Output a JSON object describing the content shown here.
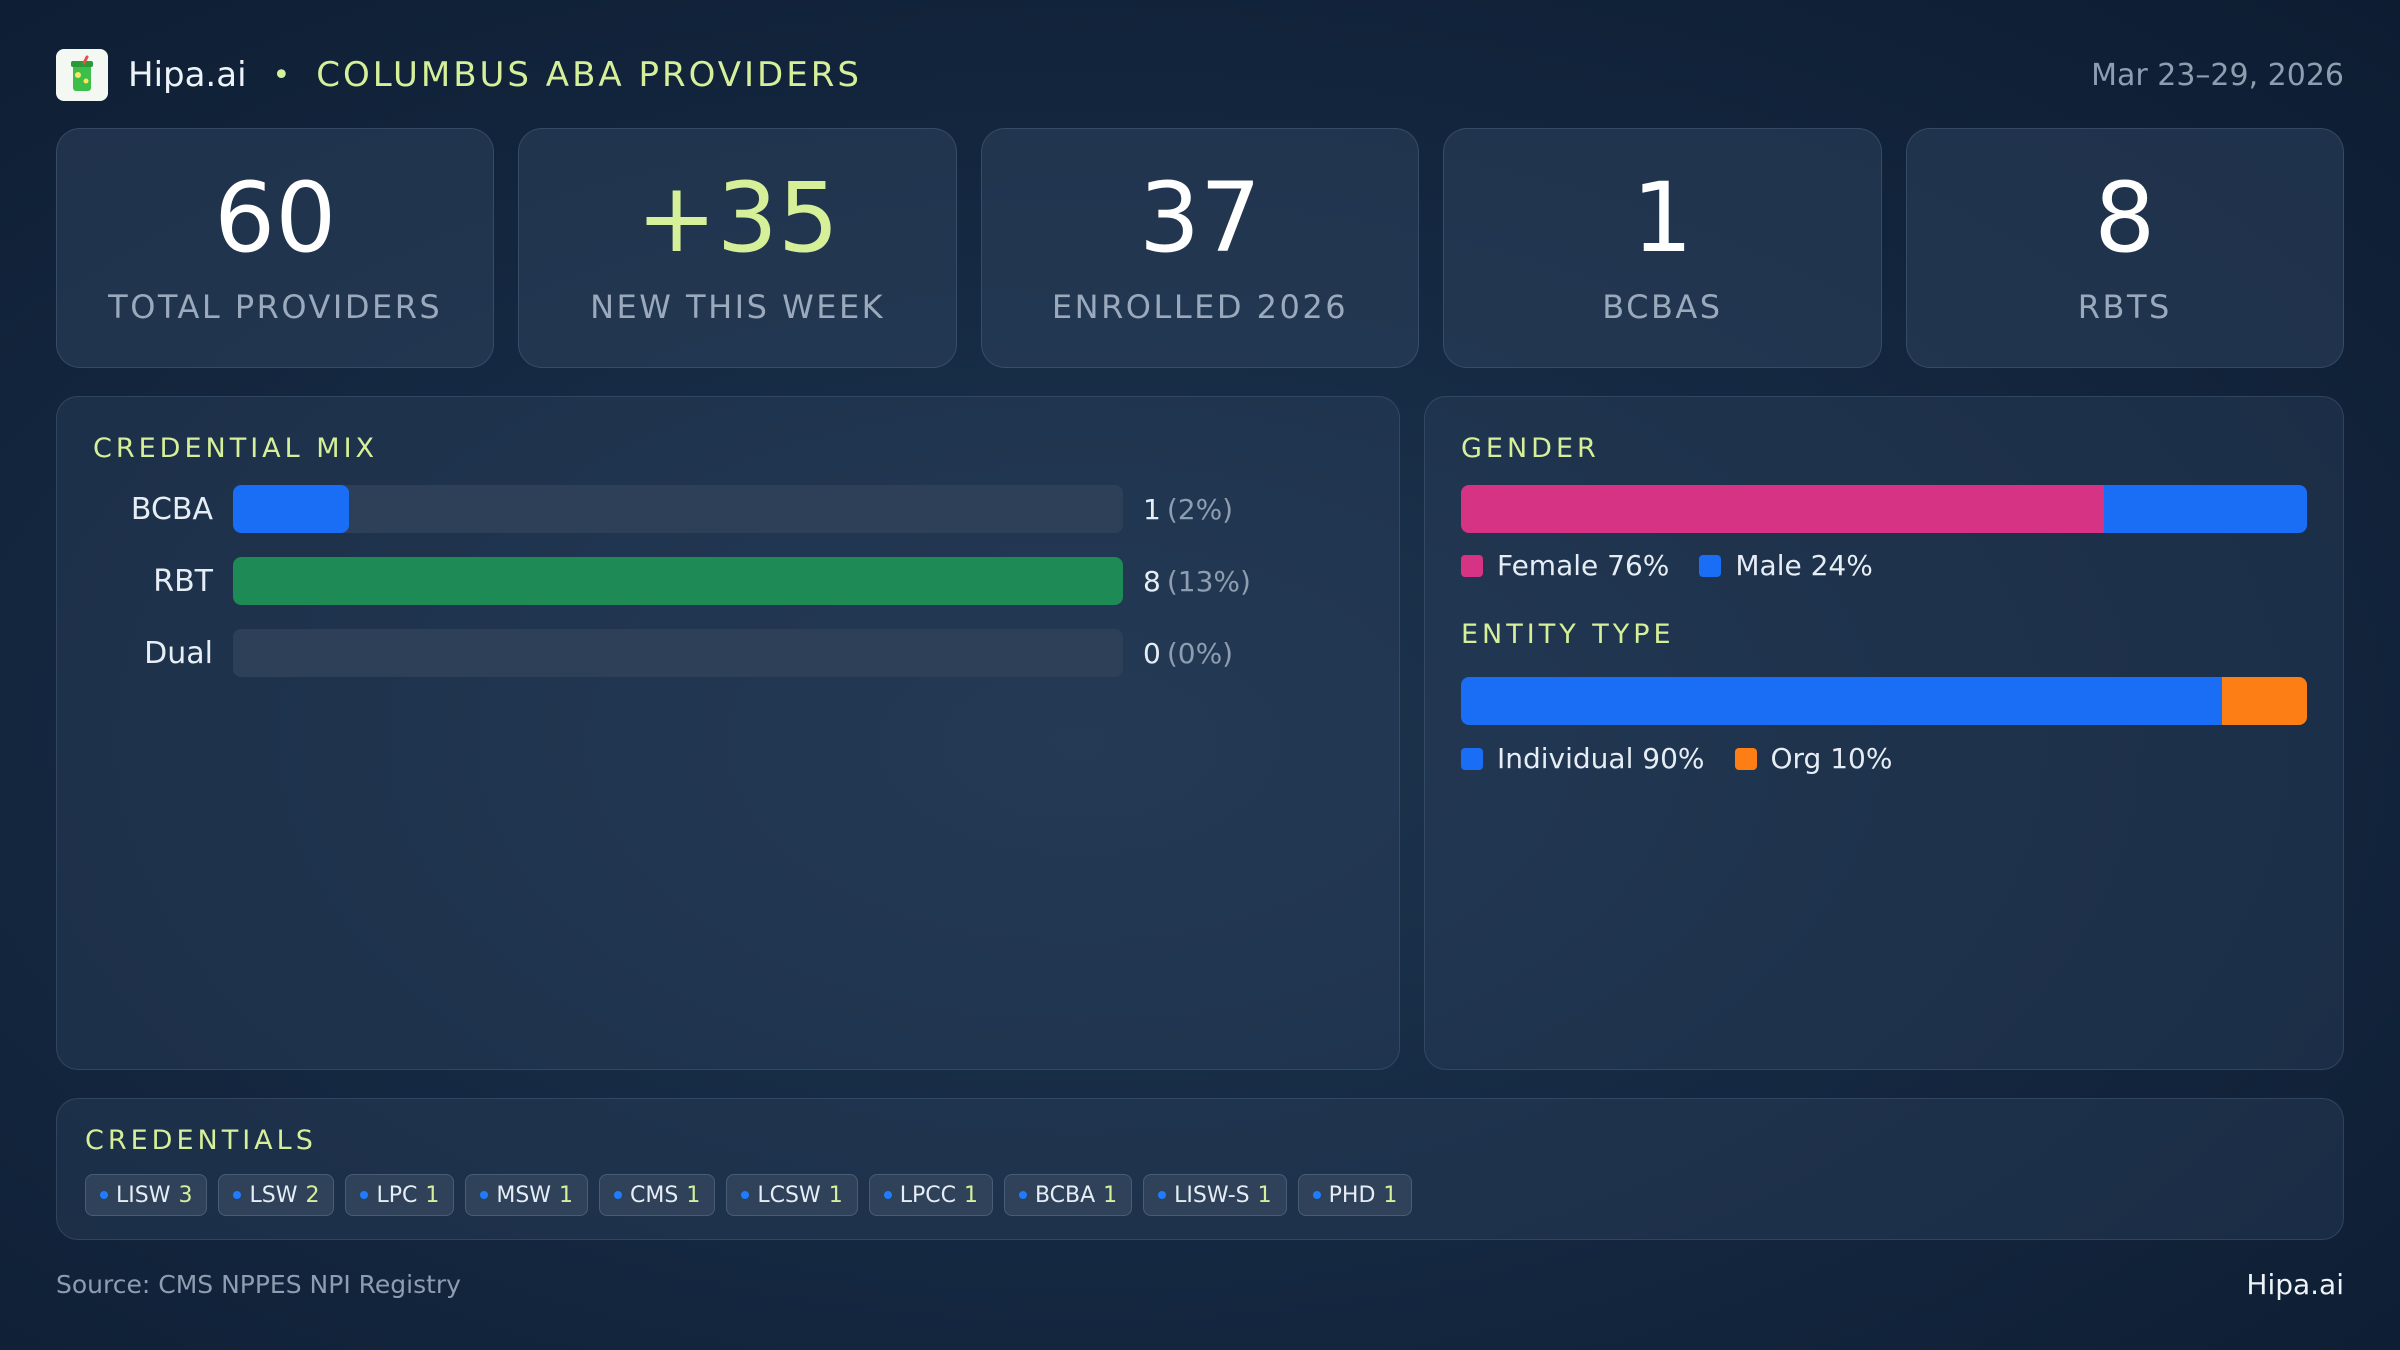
{
  "header": {
    "brand": "Hipa.ai",
    "separator": "•",
    "title": "COLUMBUS ABA PROVIDERS",
    "date_range": "Mar 23–29, 2026"
  },
  "stats": [
    {
      "value": "60",
      "label": "TOTAL PROVIDERS"
    },
    {
      "value": "+35",
      "label": "NEW THIS WEEK"
    },
    {
      "value": "37",
      "label": "ENROLLED 2026"
    },
    {
      "value": "1",
      "label": "BCBAS"
    },
    {
      "value": "8",
      "label": "RBTS"
    }
  ],
  "credential_mix": {
    "title": "CREDENTIAL MIX",
    "rows": [
      {
        "label": "BCBA",
        "count": "1",
        "pct": "(2%)",
        "fill_fraction": 0.13,
        "color": "#1a6ef5"
      },
      {
        "label": "RBT",
        "count": "8",
        "pct": "(13%)",
        "fill_fraction": 1.0,
        "color": "#1e8a55"
      },
      {
        "label": "Dual",
        "count": "0",
        "pct": "(0%)",
        "fill_fraction": 0.0,
        "color": "#1a6ef5"
      }
    ]
  },
  "gender": {
    "title": "GENDER",
    "segments": [
      {
        "name": "Female 76%",
        "fraction": 0.76,
        "color": "#d63384"
      },
      {
        "name": "Male 24%",
        "fraction": 0.24,
        "color": "#1a6ef5"
      }
    ]
  },
  "entity_type": {
    "title": "ENTITY TYPE",
    "segments": [
      {
        "name": "Individual 90%",
        "fraction": 0.9,
        "color": "#1a6ef5"
      },
      {
        "name": "Org 10%",
        "fraction": 0.1,
        "color": "#fd7e14"
      }
    ]
  },
  "credentials": {
    "title": "CREDENTIALS",
    "chips": [
      {
        "label": "LISW",
        "count": "3"
      },
      {
        "label": "LSW",
        "count": "2"
      },
      {
        "label": "LPC",
        "count": "1"
      },
      {
        "label": "MSW",
        "count": "1"
      },
      {
        "label": "CMS",
        "count": "1"
      },
      {
        "label": "LCSW",
        "count": "1"
      },
      {
        "label": "LPCC",
        "count": "1"
      },
      {
        "label": "BCBA",
        "count": "1"
      },
      {
        "label": "LISW-S",
        "count": "1"
      },
      {
        "label": "PHD",
        "count": "1"
      }
    ]
  },
  "footer": {
    "source": "Source: CMS NPPES NPI Registry",
    "brand": "Hipa.ai"
  },
  "icons": {
    "logo": "cup-logo-icon"
  },
  "colors": {
    "accent": "#d6f09a",
    "blue": "#1a6ef5",
    "green": "#1e8a55",
    "pink": "#d63384",
    "orange": "#fd7e14"
  }
}
